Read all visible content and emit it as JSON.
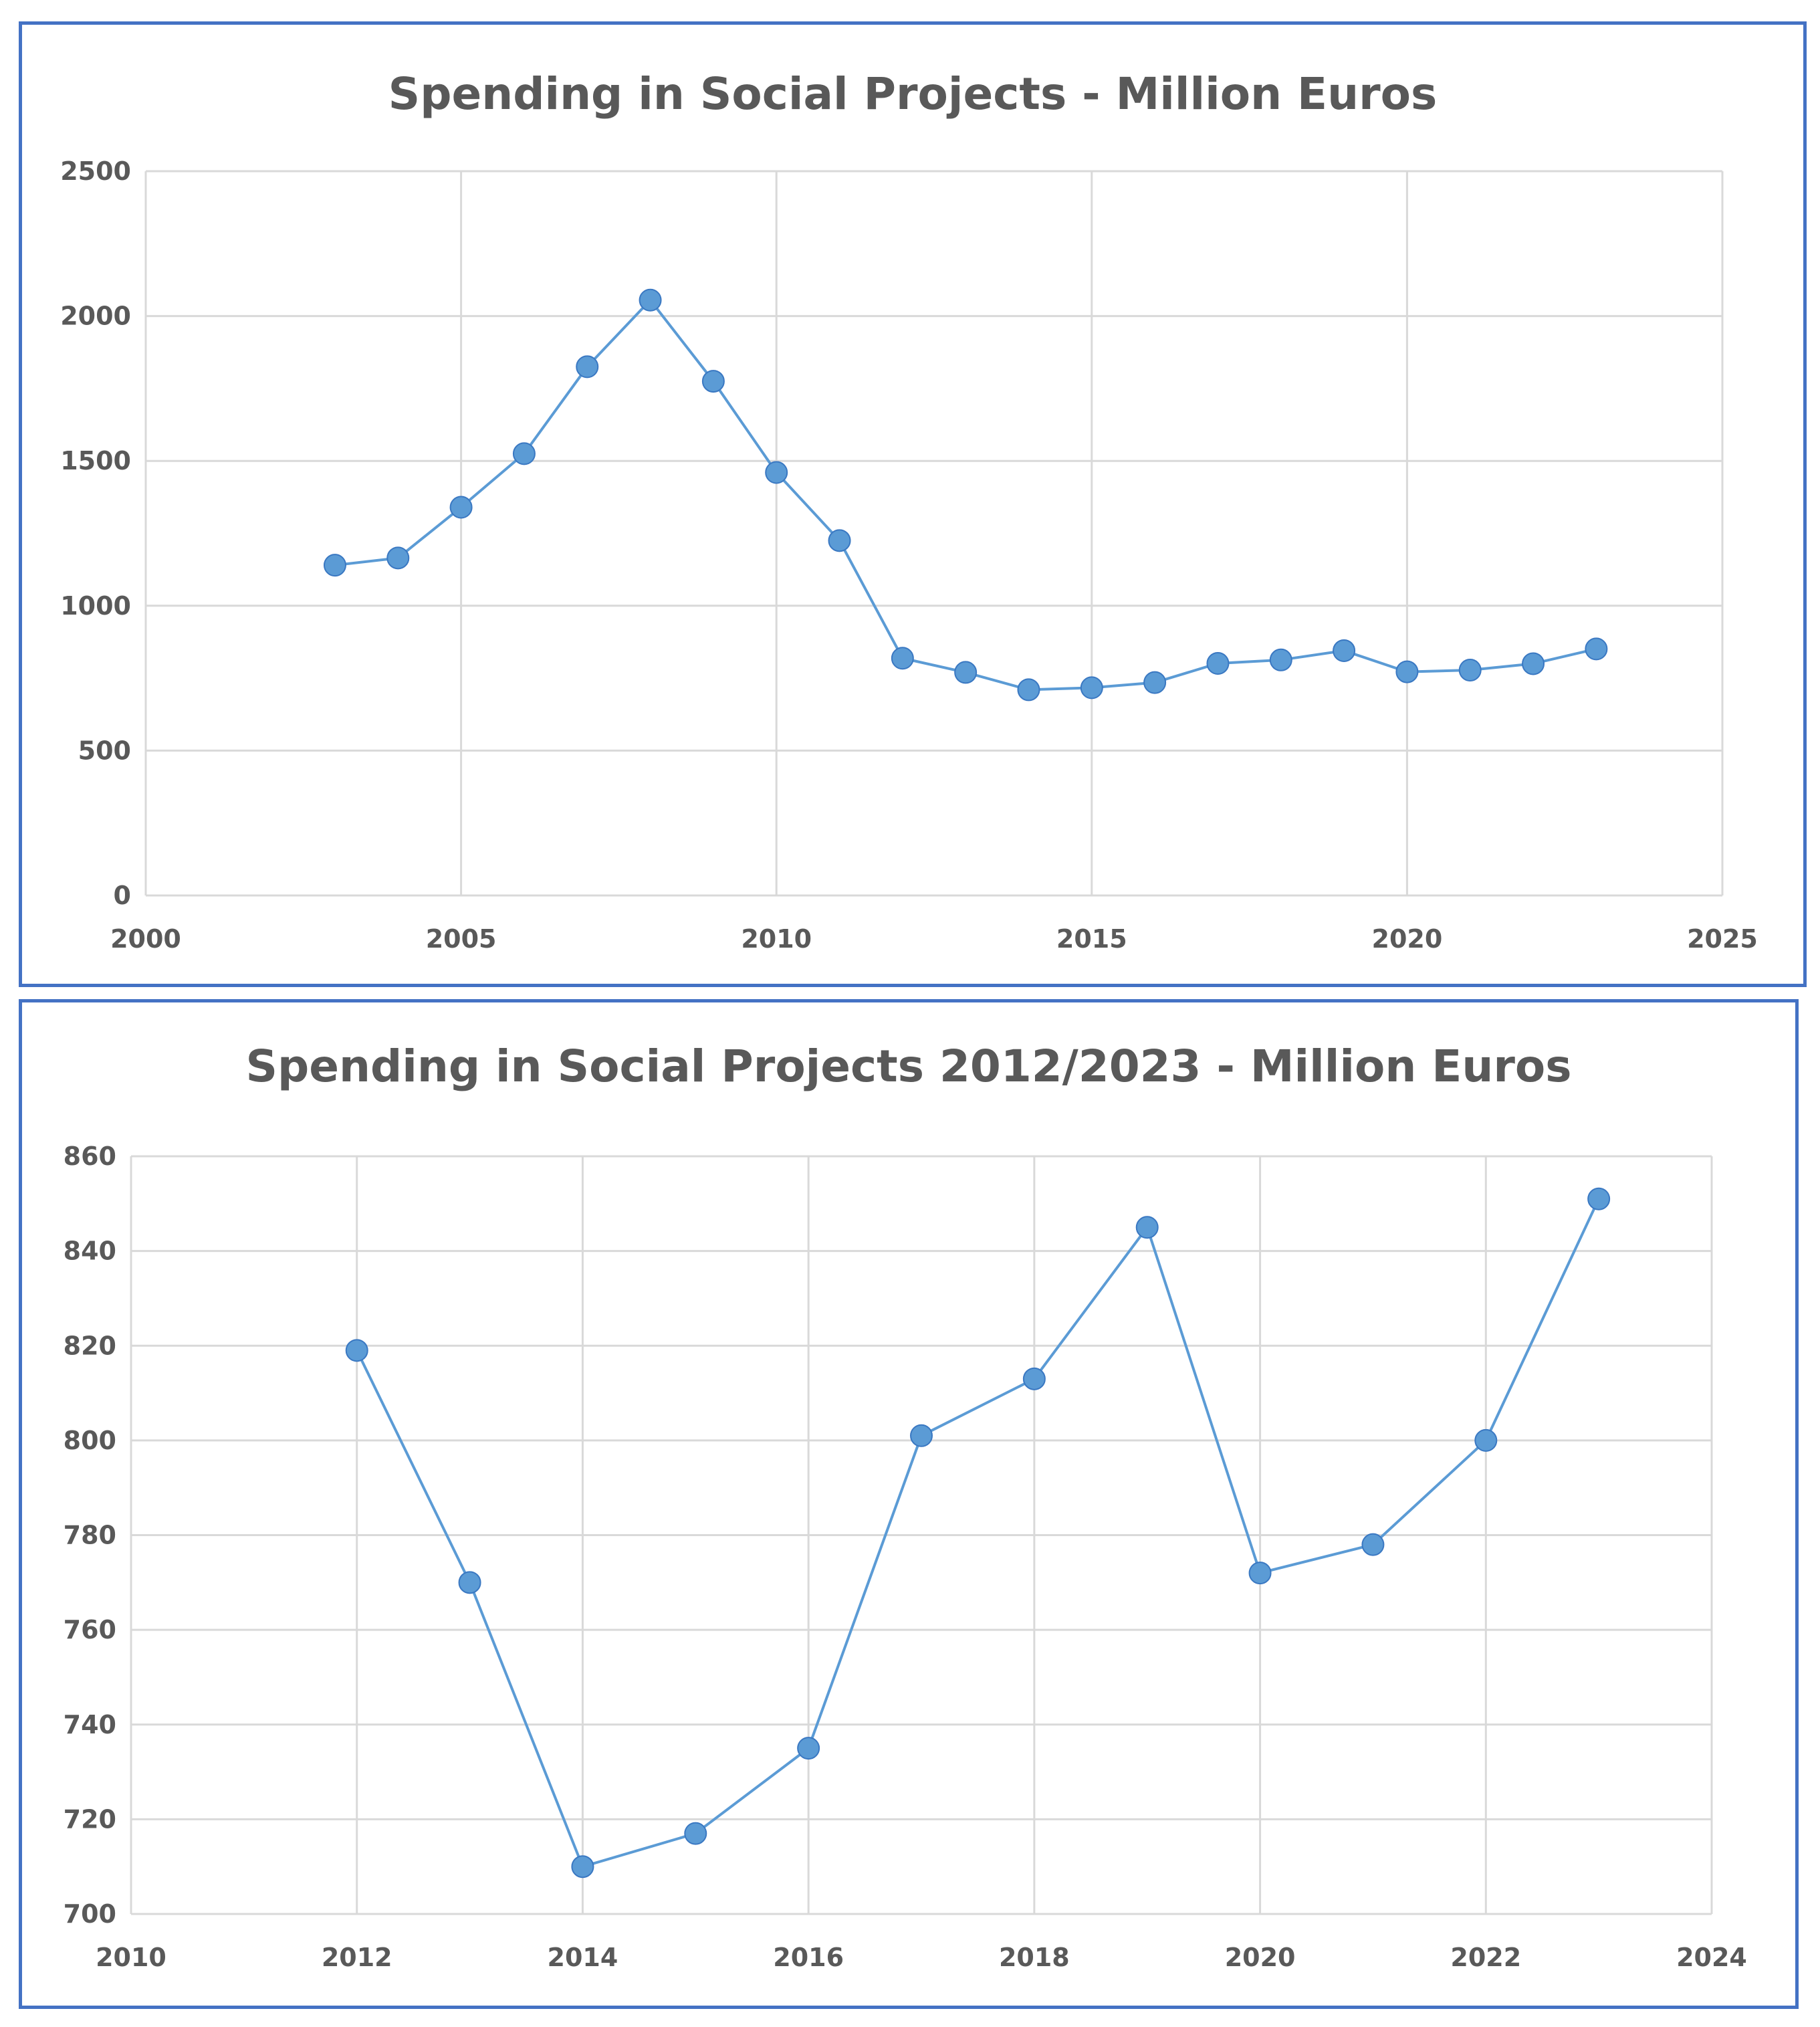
{
  "chart_data": [
    {
      "type": "scatter",
      "title": "Spending in Social Projects - Million Euros",
      "xlabel": "",
      "ylabel": "",
      "xlim": [
        2000,
        2025
      ],
      "ylim": [
        0,
        2500
      ],
      "x_ticks": [
        "2000",
        "2005",
        "2010",
        "2015",
        "2020",
        "2025"
      ],
      "y_ticks": [
        "0",
        "500",
        "1000",
        "1500",
        "2000",
        "2500"
      ],
      "grid": true,
      "legend": "none",
      "series": [
        {
          "name": "Spending",
          "color": "#5b9bd5",
          "x": [
            2003,
            2004,
            2005,
            2006,
            2007,
            2008,
            2009,
            2010,
            2011,
            2012,
            2013,
            2014,
            2015,
            2016,
            2017,
            2018,
            2019,
            2020,
            2021,
            2022,
            2023
          ],
          "values": [
            1140,
            1165,
            1340,
            1525,
            1825,
            2055,
            1775,
            1460,
            1225,
            819,
            770,
            710,
            717,
            735,
            801,
            813,
            845,
            772,
            778,
            800,
            851
          ]
        }
      ]
    },
    {
      "type": "scatter",
      "title": "Spending in Social Projects 2012/2023 - Million Euros",
      "xlabel": "",
      "ylabel": "",
      "xlim": [
        2010,
        2024
      ],
      "ylim": [
        700,
        860
      ],
      "x_ticks": [
        "2010",
        "2012",
        "2014",
        "2016",
        "2018",
        "2020",
        "2022",
        "2024"
      ],
      "y_ticks": [
        "700",
        "720",
        "740",
        "760",
        "780",
        "800",
        "820",
        "840",
        "860"
      ],
      "grid": true,
      "legend": "none",
      "series": [
        {
          "name": "Spending",
          "color": "#5b9bd5",
          "x": [
            2012,
            2013,
            2014,
            2015,
            2016,
            2017,
            2018,
            2019,
            2020,
            2021,
            2022,
            2023
          ],
          "values": [
            819,
            770,
            710,
            717,
            735,
            801,
            813,
            845,
            772,
            778,
            800,
            851
          ]
        }
      ]
    }
  ]
}
